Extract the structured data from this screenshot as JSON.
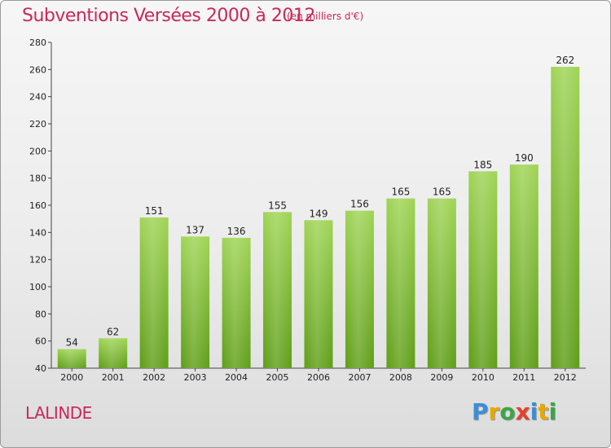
{
  "header": {
    "title": "Subventions Versées 2000 à 2012",
    "subtitle": "(en milliers d'€)"
  },
  "footer": {
    "city": "LALINDE",
    "logo_text": "Proxiti",
    "logo_colors": [
      "#3b8fd9",
      "#e8a800",
      "#3aa64a",
      "#e8402a",
      "#3b8fd9",
      "#e8a800",
      "#3aa64a"
    ]
  },
  "chart_data": {
    "type": "bar",
    "categories": [
      "2000",
      "2001",
      "2002",
      "2003",
      "2004",
      "2005",
      "2006",
      "2007",
      "2008",
      "2009",
      "2010",
      "2011",
      "2012"
    ],
    "values": [
      54,
      62,
      151,
      137,
      136,
      155,
      149,
      156,
      165,
      165,
      185,
      190,
      262
    ],
    "title": "Subventions Versées 2000 à 2012",
    "ylim": [
      40,
      280
    ],
    "yticks": [
      40,
      60,
      80,
      100,
      120,
      140,
      160,
      180,
      200,
      220,
      240,
      260,
      280
    ],
    "grid": false,
    "bar_color": "#7dbb2c"
  }
}
